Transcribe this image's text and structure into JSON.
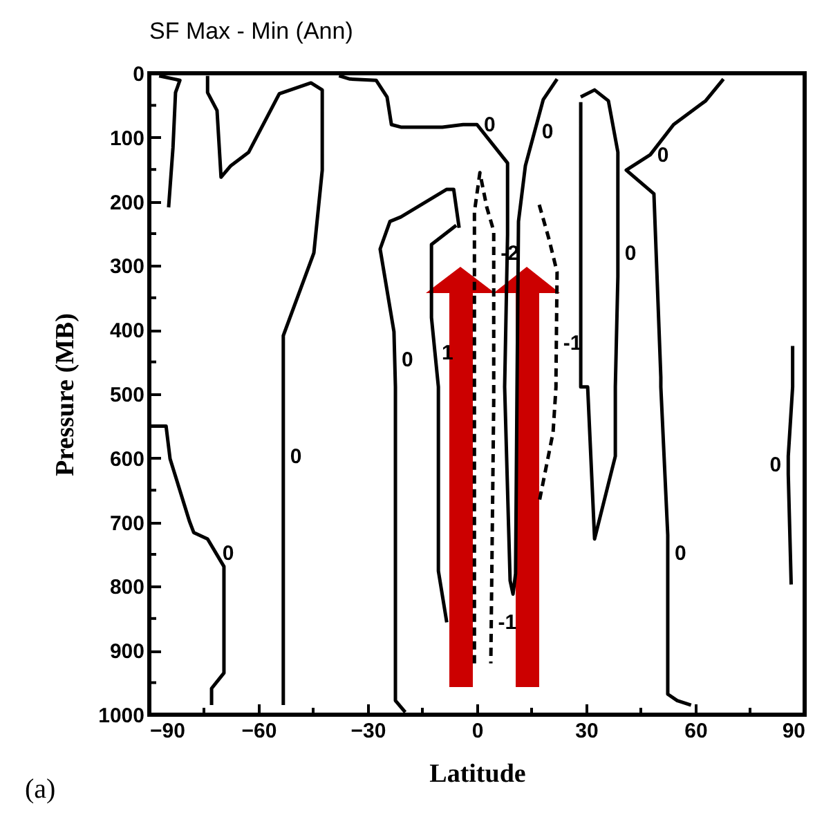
{
  "chart_data": {
    "type": "line",
    "title": "SF Max - Min  (Ann)",
    "xlabel": "Latitude",
    "ylabel": "Pressure (MB)",
    "xlim": [
      -90,
      90
    ],
    "xticks": [
      -90,
      {
        "value": -75,
        "label": null
      },
      -60,
      {
        "value": -45,
        "label": null
      },
      -30,
      {
        "value": -15,
        "label": null
      },
      0,
      {
        "value": 15,
        "label": null
      },
      30,
      {
        "value": 45,
        "label": null
      },
      60,
      {
        "value": 75,
        "label": null
      },
      90
    ],
    "ylim": [
      1000,
      0
    ],
    "yticks": [
      0,
      {
        "value": 50,
        "label": null
      },
      100,
      {
        "value": 150,
        "label": null
      },
      200,
      {
        "value": 250,
        "label": null
      },
      300,
      {
        "value": 350,
        "label": null
      },
      400,
      {
        "value": 450,
        "label": null
      },
      500,
      {
        "value": 550,
        "label": null
      },
      600,
      {
        "value": 650,
        "label": null
      },
      700,
      {
        "value": 750,
        "label": null
      },
      800,
      {
        "value": 850,
        "label": null
      },
      900,
      {
        "value": 950,
        "label": null
      },
      1000
    ],
    "series": [
      {
        "color": "#000000",
        "line_style": "solid",
        "x": [
          -87.3,
          -81.6,
          -82.8,
          -83.5,
          -84.7,
          null,
          -74.0,
          -74.0,
          -71.4,
          -70.3,
          -67.6,
          -62.7,
          -54.3,
          -45.6,
          -42.5,
          -42.5,
          -44.8,
          -53.2,
          -53.2,
          null,
          -90,
          -85.4,
          -84.3,
          -79.0,
          -77.8,
          -74.0,
          -69.5,
          -69.5,
          -72.9,
          -72.9
        ],
        "values": [
          4,
          11,
          30,
          116,
          209,
          null,
          4,
          30,
          58,
          162,
          144,
          123,
          32,
          15,
          26,
          151,
          280,
          409,
          985,
          null,
          550,
          550,
          601,
          698,
          716,
          726,
          769,
          935,
          959,
          985
        ]
      },
      {
        "color": "#000000",
        "line_style": "solid",
        "x": [
          -19.7,
          -22.4,
          -22.4,
          -22.8,
          -26.6,
          -23.9,
          -20.9,
          -8.3,
          -6.4,
          -4.9,
          null,
          -8.3,
          -10.6,
          -10.6,
          -12.5,
          -12.5,
          -5.7
        ],
        "values": [
          996,
          978,
          489,
          403,
          274,
          231,
          224,
          181,
          181,
          241,
          null,
          856,
          776,
          489,
          381,
          267,
          237
        ]
      },
      {
        "color": "#000000",
        "line_style": "solid",
        "x": [
          -37.9,
          -34.9,
          -27.7,
          -24.7,
          -23.5,
          -20.9,
          -9.5,
          -3.8,
          0,
          8.4,
          8.4,
          7.6,
          9.1,
          9.9,
          10.6,
          11.0,
          11.4,
          13.3,
          18.2,
          22.0
        ],
        "values": [
          4,
          9,
          11,
          37,
          80,
          84,
          84,
          80,
          80,
          140,
          252,
          489,
          791,
          812,
          780,
          489,
          231,
          144,
          41,
          9
        ]
      },
      {
        "color": "#000000",
        "line_style": "solid",
        "x": [
          28.5,
          32.3,
          36.1,
          38.7,
          38.7,
          38.7,
          38.0,
          38.0,
          32.3,
          30.4,
          28.5,
          28.5,
          null,
          67.7,
          62.8,
          54.0,
          47.6,
          41.0,
          48.6,
          50.5,
          50.5,
          52.4,
          52.4,
          52.4,
          55.0,
          58.8,
          null,
          86.7,
          86.7,
          85.5,
          85.5,
          86.3
        ],
        "values": [
          37,
          26,
          43,
          123,
          241,
          317,
          489,
          597,
          726,
          489,
          489,
          45,
          null,
          9,
          43,
          80,
          127,
          151,
          188,
          474,
          489,
          720,
          776,
          968,
          978,
          985,
          null,
          425,
          489,
          597,
          625,
          797
        ]
      },
      {
        "color": "#000000",
        "line_style": "dashed",
        "x": [
          17.1,
          19.8,
          22.0,
          21.7,
          21.7,
          20.9,
          17.1,
          null,
          -0.7,
          -0.7,
          0.8,
          2.7,
          4.6,
          4.6,
          3.8
        ],
        "values": [
          205,
          259,
          310,
          474,
          489,
          560,
          668,
          null,
          920,
          216,
          155,
          209,
          246,
          511,
          920
        ]
      }
    ],
    "annotations": [
      {
        "text": "0",
        "x": -53.2,
        "y": 597
      },
      {
        "text": "0",
        "x": -71.8,
        "y": 748
      },
      {
        "text": "0",
        "x": -22.6,
        "y": 446
      },
      {
        "text": "1",
        "x": -11.6,
        "y": 435
      },
      {
        "text": "0",
        "x": 0,
        "y": 80
      },
      {
        "text": "0",
        "x": 15.9,
        "y": 90
      },
      {
        "text": "-2",
        "x": 4.6,
        "y": 280
      },
      {
        "text": "-1",
        "x": 21.8,
        "y": 420
      },
      {
        "text": "-1",
        "x": 3.9,
        "y": 856
      },
      {
        "text": "0",
        "x": 38.7,
        "y": 280
      },
      {
        "text": "0",
        "x": 47.6,
        "y": 127
      },
      {
        "text": "0",
        "x": 52.4,
        "y": 748
      },
      {
        "text": "0",
        "x": 85.5,
        "y": 610
      },
      "(a)"
    ]
  }
}
